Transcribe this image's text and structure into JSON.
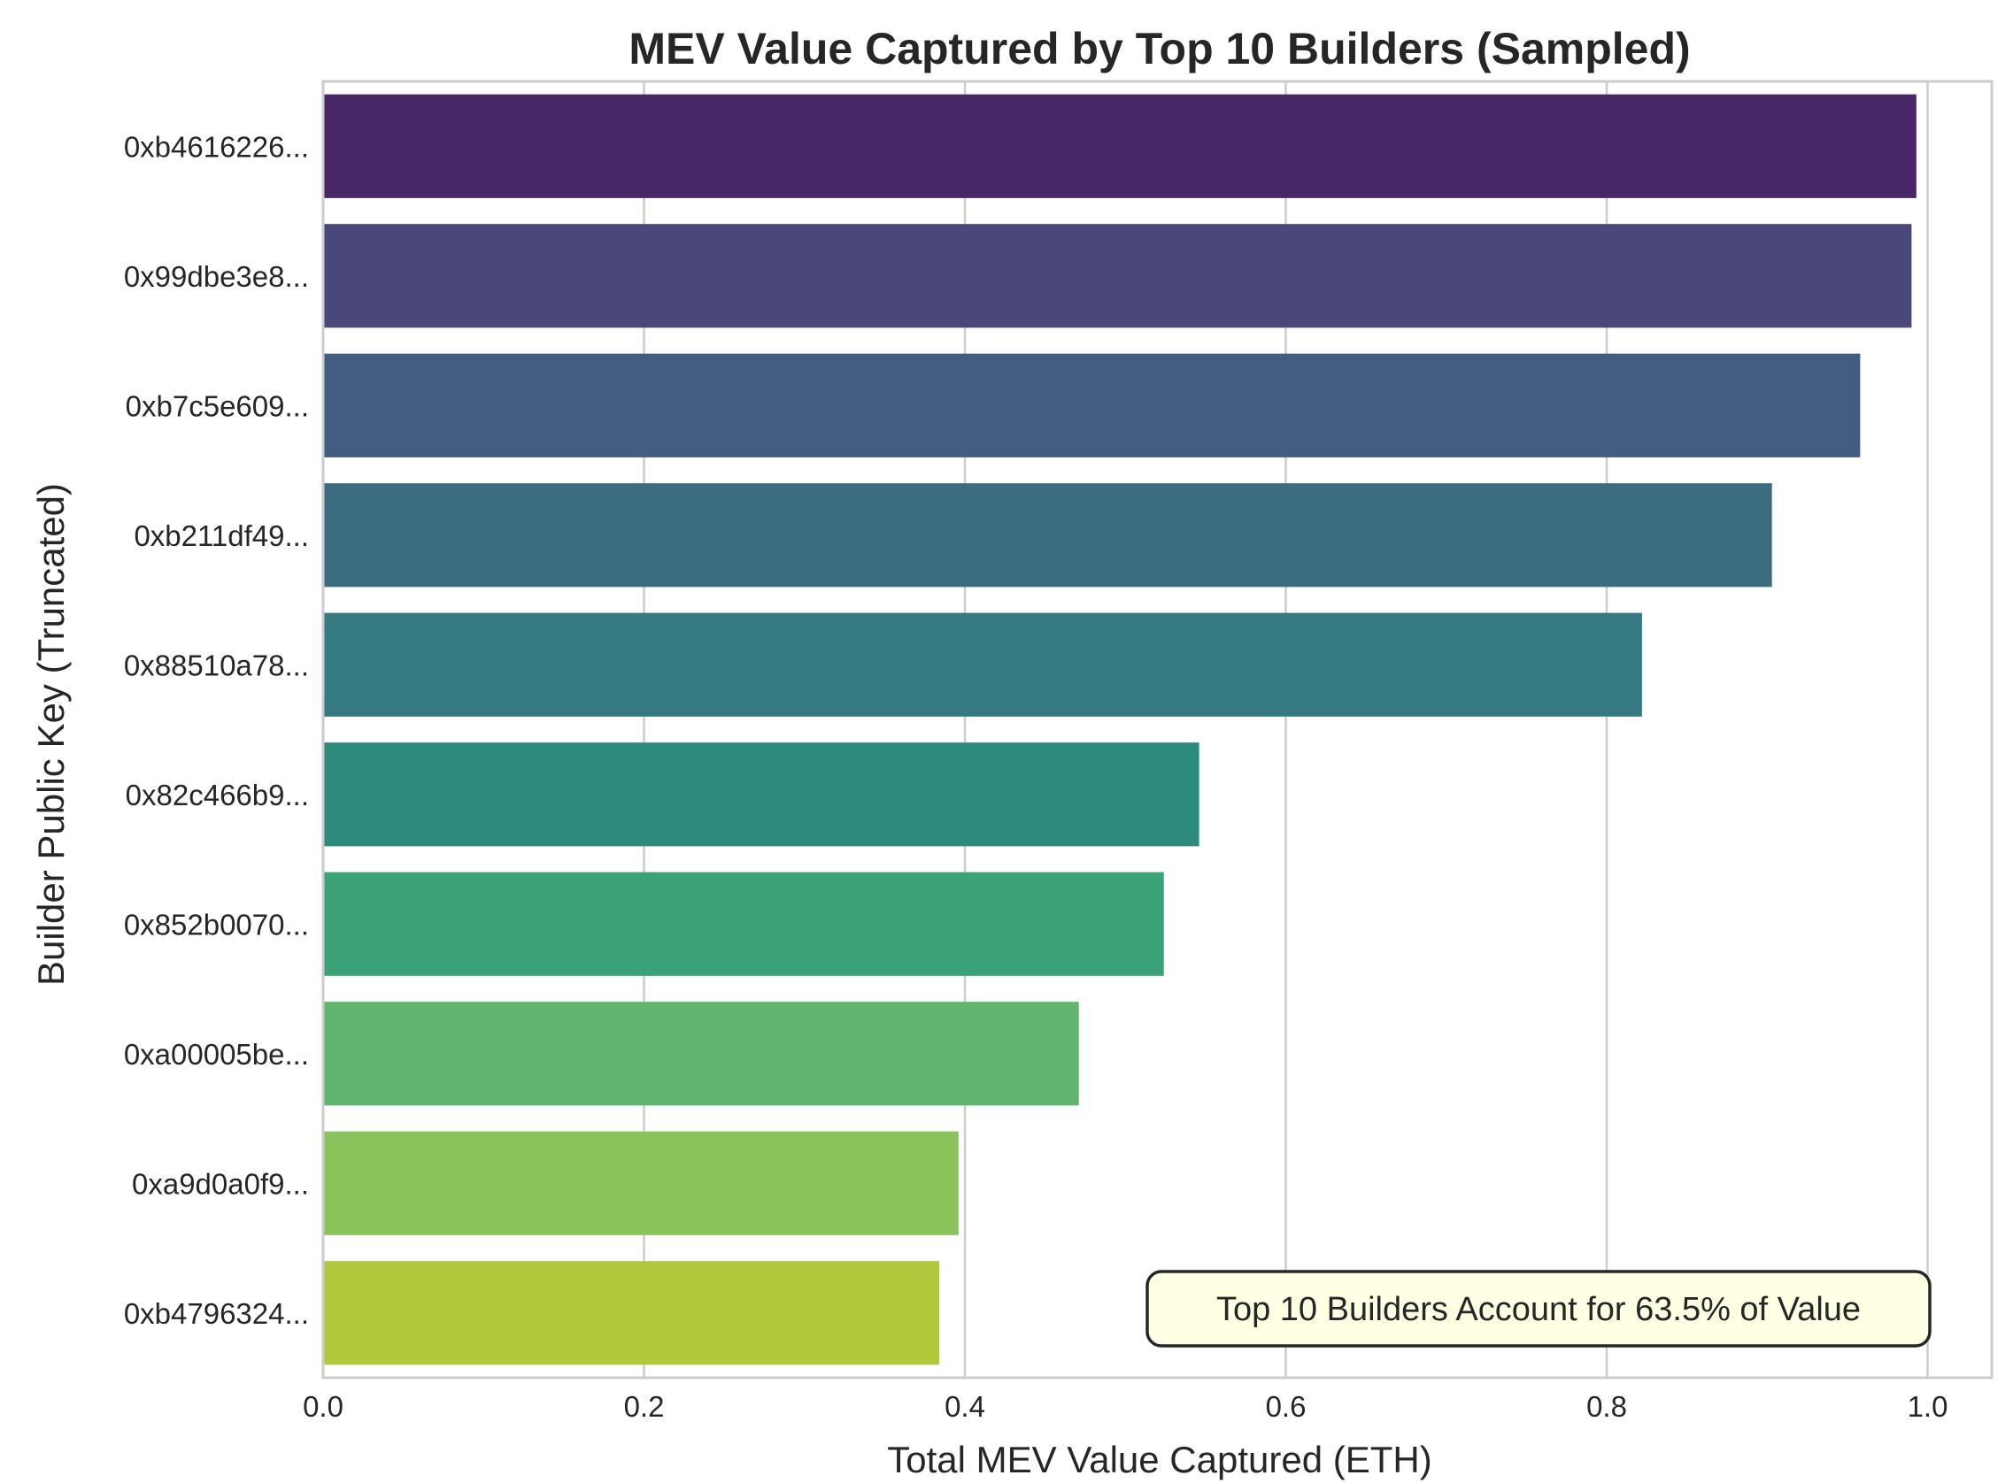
{
  "chart_data": {
    "type": "bar",
    "orientation": "horizontal",
    "title": "MEV Value Captured by Top 10 Builders (Sampled)",
    "xlabel": "Total MEV Value Captured (ETH)",
    "ylabel": "Builder Public Key (Truncated)",
    "xlim": [
      0.0,
      1.04
    ],
    "x_ticks": [
      "0.0",
      "0.2",
      "0.4",
      "0.6",
      "0.8",
      "1.0"
    ],
    "x_tick_values": [
      0.0,
      0.2,
      0.4,
      0.6,
      0.8,
      1.0
    ],
    "grid": "x",
    "categories": [
      "0xb4616226...",
      "0x99dbe3e8...",
      "0xb7c5e609...",
      "0xb211df49...",
      "0x88510a78...",
      "0x82c466b9...",
      "0x852b0070...",
      "0xa00005be...",
      "0xa9d0a0f9...",
      "0xb4796324..."
    ],
    "values": [
      0.993,
      0.99,
      0.958,
      0.903,
      0.822,
      0.546,
      0.524,
      0.471,
      0.396,
      0.384
    ],
    "colors": [
      "#482667",
      "#4a487b",
      "#435c81",
      "#3b6c80",
      "#347a80",
      "#2e8b7b",
      "#3ba277",
      "#62b56f",
      "#8ac25c",
      "#b2c73a"
    ],
    "annotation": "Top 10 Builders Account for 63.5% of Value",
    "annotation_position": "bottom-right"
  },
  "style": {
    "text_color": "#262626",
    "grid_color": "#cccccc",
    "spine_color": "#cccccc",
    "annotation_bg": "#ffffe4",
    "annotation_border": "#262626"
  }
}
